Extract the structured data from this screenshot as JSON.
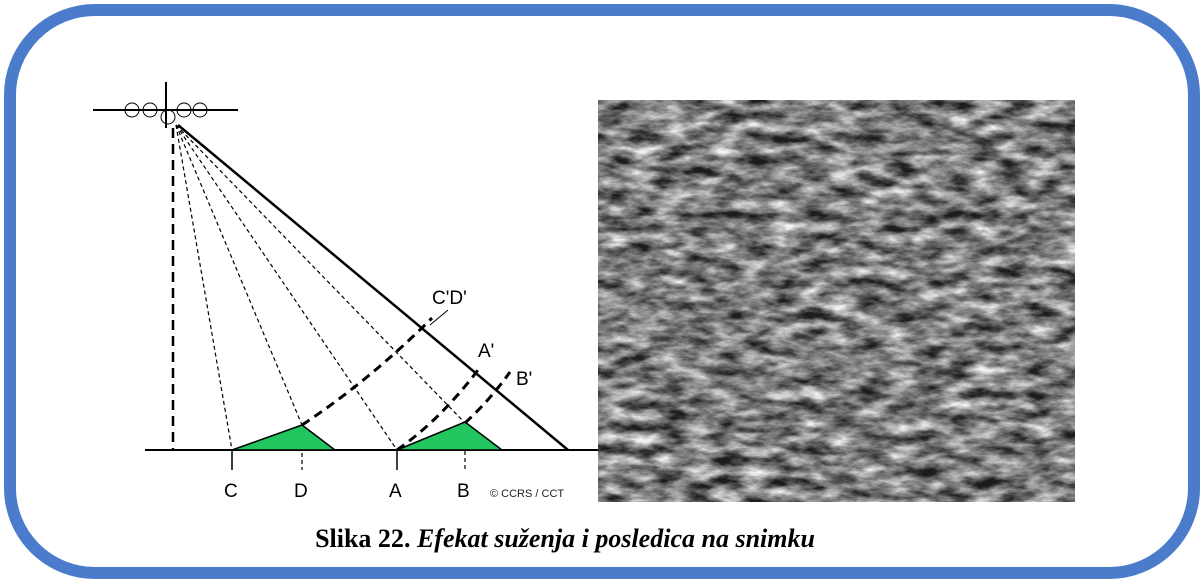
{
  "figure": {
    "diagram": {
      "labels": [
        "C'D'",
        "A'",
        "B'",
        "C",
        "D",
        "A",
        "B"
      ],
      "copyright": "© CCRS / CCT"
    },
    "caption": {
      "label": "Slika 22",
      "separator": ".",
      "text": "Efekat suženja i posledica na snimku"
    }
  }
}
